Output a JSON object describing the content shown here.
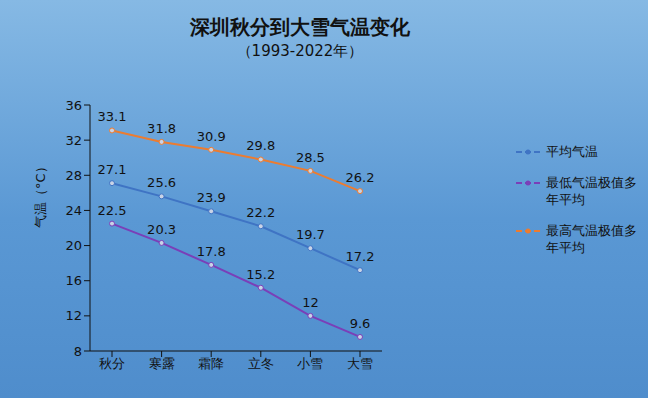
{
  "chart_data": {
    "type": "line",
    "title": "深圳秋分到大雪气温变化",
    "subtitle": "（1993-2022年）",
    "y_label": "气温（°C）",
    "categories": [
      "秋分",
      "寒露",
      "霜降",
      "立冬",
      "小雪",
      "大雪"
    ],
    "series": [
      {
        "name": "平均气温",
        "color": "#3f74c4",
        "marker": "circle",
        "values": [
          27.1,
          25.6,
          23.9,
          22.2,
          19.7,
          17.2
        ]
      },
      {
        "name": "最高气温极值多年平均",
        "color": "#ec7c30",
        "marker": "circle",
        "values": [
          33.1,
          31.8,
          30.9,
          29.8,
          28.5,
          26.2
        ]
      },
      {
        "name": "最低气温极值多年平均",
        "color": "#7a3fb8",
        "marker": "circle",
        "values": [
          22.5,
          20.3,
          17.8,
          15.2,
          12,
          9.6
        ]
      }
    ],
    "ylim": [
      8,
      36
    ],
    "yticks": [
      8,
      12,
      16,
      20,
      24,
      28,
      32,
      36
    ],
    "grid": false,
    "legend": "right",
    "data_labels": true
  }
}
